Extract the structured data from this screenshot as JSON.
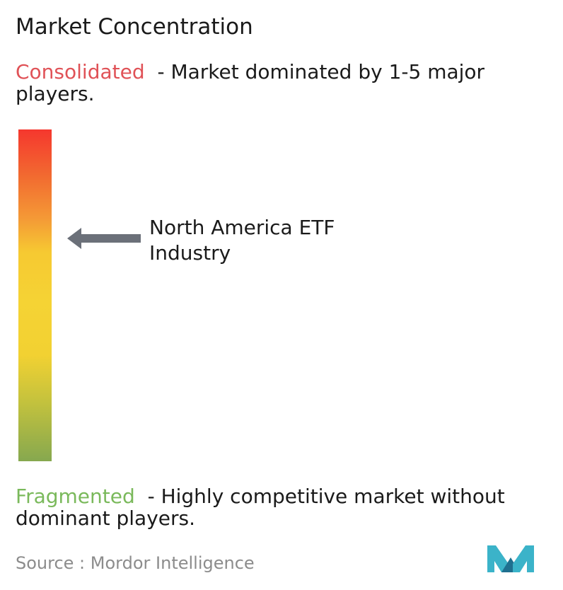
{
  "title": "Market Concentration",
  "consolidated": {
    "label": "Consolidated",
    "description": "- Market dominated by 1-5 major players.",
    "color": "#e05257"
  },
  "fragmented": {
    "label": "Fragmented",
    "description": "- Highly competitive market without dominant players.",
    "color": "#7ab95b"
  },
  "source": "Source :  Mordor Intelligence",
  "logo": {
    "icon": "mordor-intelligence-logo-icon",
    "colors": [
      "#3bb3c9",
      "#1f6f8f"
    ]
  },
  "chart_data": {
    "type": "concentration-scale",
    "scale_top": "Consolidated",
    "scale_bottom": "Fragmented",
    "gradient_colors": [
      "#f5372e",
      "#f49a36",
      "#f5d334",
      "#86a84f"
    ],
    "marker": {
      "label": "North America ETF Industry",
      "position_fraction_from_top": 0.33
    }
  }
}
